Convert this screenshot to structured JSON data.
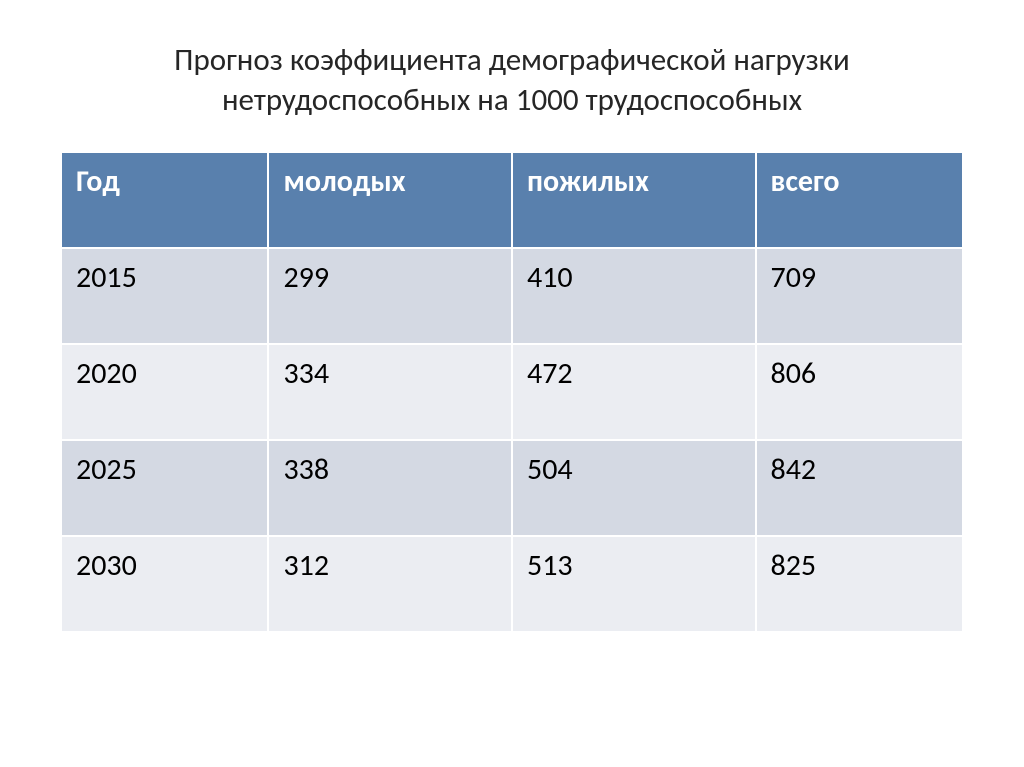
{
  "title": "Прогноз коэффициента демографической нагрузки нетрудоспособных на 1000 трудоспособных",
  "table": {
    "type": "table",
    "columns": [
      "Год",
      "молодых",
      "пожилых",
      "всего"
    ],
    "rows": [
      [
        "2015",
        "299",
        "410",
        "709"
      ],
      [
        "2020",
        "334",
        "472",
        "806"
      ],
      [
        "2025",
        "338",
        "504",
        "842"
      ],
      [
        "2030",
        "312",
        "513",
        "825"
      ]
    ],
    "header_background": "#5980ad",
    "header_text_color": "#ffffff",
    "row_odd_background": "#d4d9e3",
    "row_even_background": "#ebedf2",
    "cell_text_color": "#000000",
    "border_color": "#ffffff",
    "font_size": 30,
    "header_font_weight": 700,
    "column_widths": [
      "23%",
      "27%",
      "27%",
      "23%"
    ]
  },
  "title_style": {
    "font_size": 31,
    "color": "#262626",
    "font_weight": 400
  },
  "background_color": "#ffffff"
}
